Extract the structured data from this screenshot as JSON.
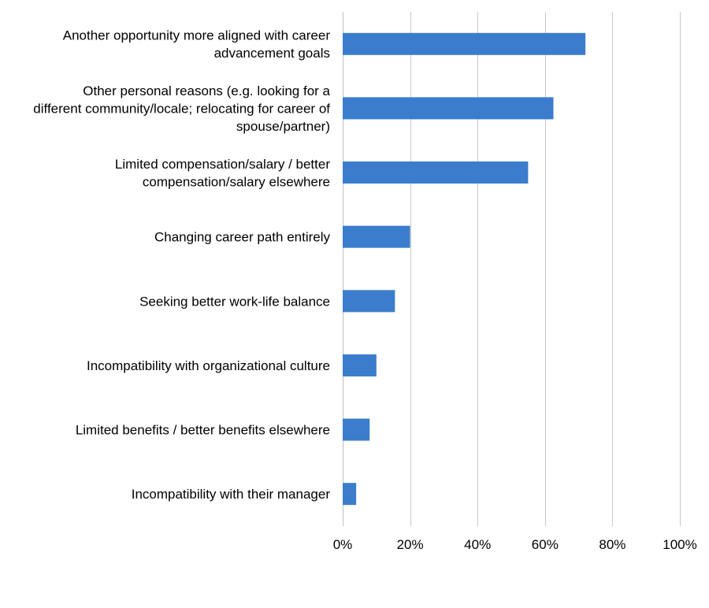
{
  "colors": {
    "bar": "#3b7dcc",
    "grid": "#c9c9c9",
    "background": "#ffffff"
  },
  "chart_data": {
    "type": "bar",
    "orientation": "horizontal",
    "title": "",
    "xlabel": "",
    "ylabel": "",
    "xlim": [
      0,
      100
    ],
    "grid": true,
    "legend": "none",
    "tick_values": [
      0,
      20,
      40,
      60,
      80,
      100
    ],
    "tick_labels": [
      "0%",
      "20%",
      "40%",
      "60%",
      "80%",
      "100%"
    ],
    "categories": [
      [
        "Another opportunity more aligned with career",
        "advancement goals"
      ],
      [
        "Other personal reasons (e.g. looking for a",
        "different community/locale; relocating for career of",
        "spouse/partner)"
      ],
      [
        "Limited compensation/salary / better",
        "compensation/salary elsewhere"
      ],
      [
        "Changing career path entirely"
      ],
      [
        "Seeking better work-life balance"
      ],
      [
        "Incompatibility with organizational culture"
      ],
      [
        "Limited benefits / better benefits elsewhere"
      ],
      [
        "Incompatibility with their manager"
      ]
    ],
    "values": [
      72,
      62.5,
      55,
      20,
      15.5,
      10,
      8,
      4
    ]
  }
}
